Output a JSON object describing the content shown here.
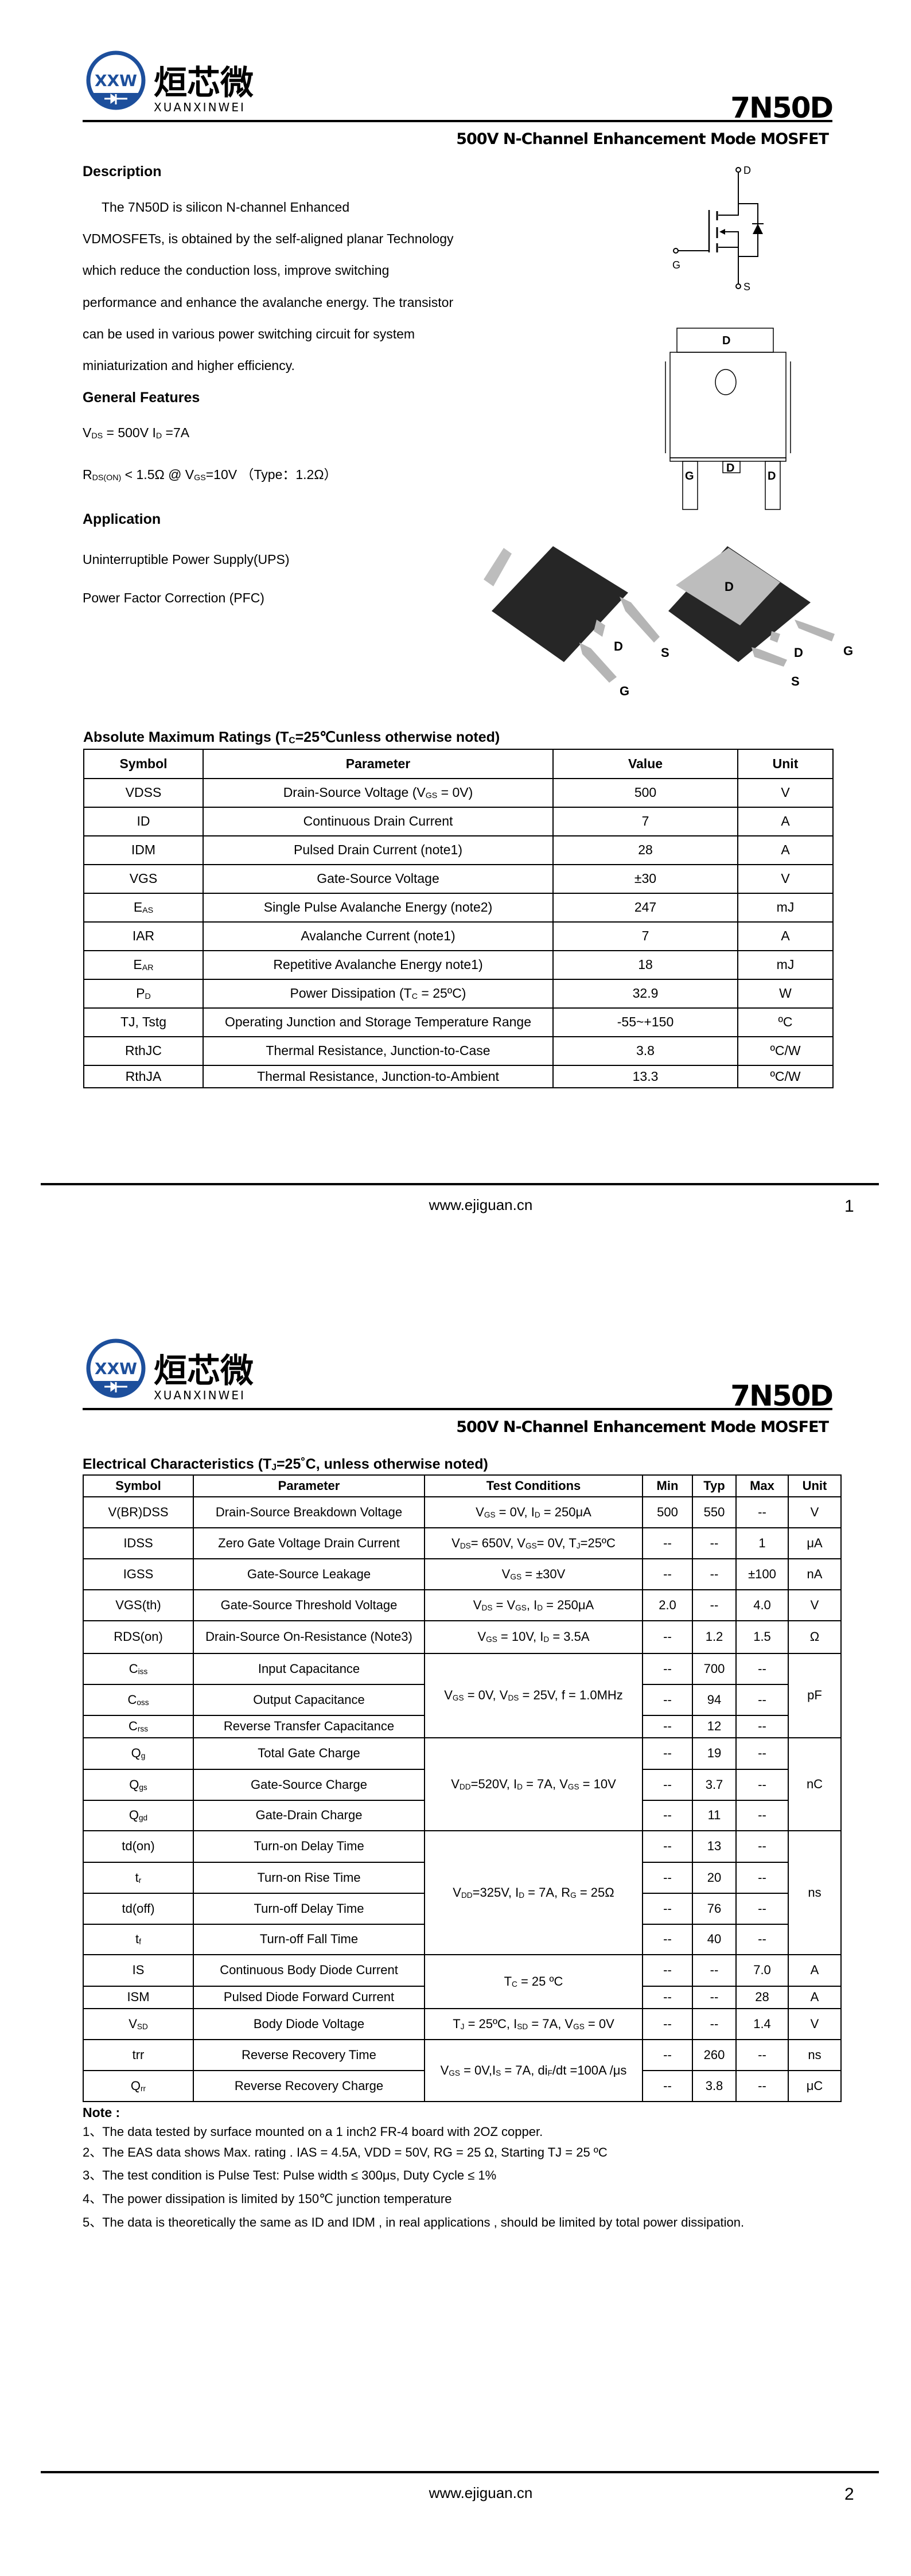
{
  "header": {
    "logo_mark": "XXW",
    "logo_text_cn": "烜芯微",
    "logo_text_en": "XUANXINWEI",
    "part_number": "7N50D",
    "subtitle": "500V N-Channel Enhancement Mode MOSFET"
  },
  "footer": {
    "website": "www.ejiguan.cn"
  },
  "page1": {
    "page_number": "1",
    "description": {
      "title": "Description",
      "lines": [
        "The 7N50D is silicon N-channel Enhanced",
        "VDMOSFETs, is obtained by the self-aligned planar Technology",
        "which reduce the conduction loss, improve switching",
        "performance and enhance the avalanche energy. The transistor",
        "can be used in various power switching circuit for system",
        "miniaturization and higher efficiency."
      ]
    },
    "features": {
      "title": "General Features",
      "items": [
        [
          "V",
          {
            "sub": "DS"
          },
          " = 500V  I",
          {
            "sub": "D"
          },
          " =7A"
        ],
        [
          "R",
          {
            "sub": "DS(ON)"
          },
          " < 1.5Ω @ V",
          {
            "sub": "GS"
          },
          "=10V （Type：1.2Ω）"
        ]
      ]
    },
    "application": {
      "title": "Application",
      "items": [
        "Uninterruptible Power Supply(UPS)",
        "Power Factor Correction (PFC)"
      ]
    },
    "schematic": {
      "drain": "D",
      "gate": "G",
      "source": "S"
    },
    "package_top": {
      "tab": "D",
      "pins": [
        "G",
        "D",
        "D"
      ]
    },
    "package_3d": {
      "left": {
        "d": "D",
        "s": "S",
        "g": "G"
      },
      "right": {
        "tab": "D",
        "d": "D",
        "g": "G",
        "s": "S"
      }
    },
    "abs_max": {
      "title": [
        "Absolute Maximum Ratings (T",
        {
          "sub": "C"
        },
        "=25℃unless otherwise noted)"
      ],
      "columns": [
        "Symbol",
        "Parameter",
        "Value",
        "Unit"
      ],
      "rows": [
        [
          [
            "VDSS"
          ],
          [
            "Drain-Source Voltage (V",
            {
              "sub": "GS"
            },
            " = 0V)"
          ],
          [
            "500"
          ],
          [
            "V"
          ]
        ],
        [
          [
            "ID"
          ],
          [
            "Continuous Drain Current"
          ],
          [
            "7"
          ],
          [
            "A"
          ]
        ],
        [
          [
            "IDM"
          ],
          [
            "Pulsed Drain Current    (note1)"
          ],
          [
            "28"
          ],
          [
            "A"
          ]
        ],
        [
          [
            "VGS"
          ],
          [
            "Gate-Source Voltage"
          ],
          [
            "±30"
          ],
          [
            "V"
          ]
        ],
        [
          [
            "E",
            {
              "sub": "AS"
            }
          ],
          [
            "Single Pulse Avalanche Energy (note2)"
          ],
          [
            "247"
          ],
          [
            "mJ"
          ]
        ],
        [
          [
            "IAR"
          ],
          [
            "Avalanche Current  (note1)"
          ],
          [
            "7"
          ],
          [
            "A"
          ]
        ],
        [
          [
            "E",
            {
              "sub": "AR"
            }
          ],
          [
            "Repetitive Avalanche Energy  note1)"
          ],
          [
            "18"
          ],
          [
            "mJ"
          ]
        ],
        [
          [
            "P",
            {
              "sub": "D"
            }
          ],
          [
            "Power Dissipation (T",
            {
              "sub": "C"
            },
            " = 25ºC)"
          ],
          [
            "32.9"
          ],
          [
            "W"
          ]
        ],
        [
          [
            "TJ, Tstg"
          ],
          [
            "Operating Junction and Storage Temperature Range"
          ],
          [
            "-55~+150"
          ],
          [
            "ºC"
          ]
        ],
        [
          [
            "RthJC"
          ],
          [
            "Thermal Resistance, Junction-to-Case"
          ],
          [
            "3.8"
          ],
          [
            "ºC/W"
          ]
        ],
        [
          [
            "RthJA"
          ],
          [
            "Thermal Resistance, Junction-to-Ambient"
          ],
          [
            "13.3"
          ],
          [
            "ºC/W"
          ]
        ]
      ]
    }
  },
  "page2": {
    "page_number": "2",
    "elec": {
      "title": [
        "Electrical Characteristics (T",
        {
          "sub": "J"
        },
        "=25˚C, unless otherwise noted)"
      ],
      "columns": [
        "Symbol",
        "Parameter",
        "Test Conditions",
        "Min",
        "Typ",
        "Max",
        "Unit"
      ],
      "rows": [
        {
          "sym": [
            "V(BR)DSS"
          ],
          "param": [
            "Drain-Source Breakdown Voltage"
          ],
          "cond": [
            "V",
            {
              "sub": "GS"
            },
            " = 0V, I",
            {
              "sub": "D"
            },
            " = 250μA"
          ],
          "min": "500",
          "typ": "550",
          "max": "--",
          "unit": "V"
        },
        {
          "sym": [
            "IDSS"
          ],
          "param": [
            "Zero Gate Voltage Drain Current"
          ],
          "cond": [
            "V",
            {
              "sub": "DS"
            },
            "= 650V, V",
            {
              "sub": "GS"
            },
            "= 0V, T",
            {
              "sub": "J"
            },
            "=25ºC"
          ],
          "min": "--",
          "typ": "--",
          "max": "1",
          "unit": "μA"
        },
        {
          "sym": [
            "IGSS"
          ],
          "param": [
            "Gate-Source Leakage"
          ],
          "cond": [
            "V",
            {
              "sub": "GS"
            },
            " = ±30V"
          ],
          "min": "--",
          "typ": "--",
          "max": "±100",
          "unit": "nA"
        },
        {
          "sym": [
            "VGS(th)"
          ],
          "param": [
            "Gate-Source Threshold Voltage"
          ],
          "cond": [
            "V",
            {
              "sub": "DS"
            },
            " = V",
            {
              "sub": "GS"
            },
            ", I",
            {
              "sub": "D"
            },
            " = 250μA"
          ],
          "min": "2.0",
          "typ": "--",
          "max": "4.0",
          "unit": "V"
        },
        {
          "sym": [
            "RDS(on)"
          ],
          "param": [
            "Drain-Source On-Resistance (Note3)"
          ],
          "cond": [
            "V",
            {
              "sub": "GS"
            },
            " = 10V, I",
            {
              "sub": "D"
            },
            " = 3.5A"
          ],
          "min": "--",
          "typ": "1.2",
          "max": "1.5",
          "unit": "Ω"
        },
        {
          "sym": [
            "C",
            {
              "sub": "iss"
            }
          ],
          "param": [
            "Input Capacitance"
          ],
          "cond": [
            "V",
            {
              "sub": "GS"
            },
            " = 0V, V",
            {
              "sub": "DS"
            },
            " = 25V, f = 1.0MHz"
          ],
          "cond_span": 3,
          "min": "--",
          "typ": "700",
          "max": "--",
          "unit": "pF",
          "unit_span": 3
        },
        {
          "sym": [
            "C",
            {
              "sub": "oss"
            }
          ],
          "param": [
            "Output Capacitance"
          ],
          "min": "--",
          "typ": "94",
          "max": "--"
        },
        {
          "sym": [
            "C",
            {
              "sub": "rss"
            }
          ],
          "param": [
            "Reverse Transfer Capacitance"
          ],
          "min": "--",
          "typ": "12",
          "max": "--"
        },
        {
          "sym": [
            "Q",
            {
              "sub": "g"
            }
          ],
          "param": [
            "Total Gate Charge"
          ],
          "cond": [
            "V",
            {
              "sub": "DD"
            },
            "=520V, I",
            {
              "sub": "D"
            },
            " = 7A, V",
            {
              "sub": "GS"
            },
            " = 10V"
          ],
          "cond_span": 3,
          "min": "--",
          "typ": "19",
          "max": "--",
          "unit": "nC",
          "unit_span": 3
        },
        {
          "sym": [
            "Q",
            {
              "sub": "gs"
            }
          ],
          "param": [
            "Gate-Source Charge"
          ],
          "min": "--",
          "typ": "3.7",
          "max": "--"
        },
        {
          "sym": [
            "Q",
            {
              "sub": "gd"
            }
          ],
          "param": [
            "Gate-Drain Charge"
          ],
          "min": "--",
          "typ": "11",
          "max": "--"
        },
        {
          "sym": [
            "td(on)"
          ],
          "param": [
            "Turn-on Delay Time"
          ],
          "cond": [
            "V",
            {
              "sub": "DD"
            },
            "=325V, I",
            {
              "sub": "D"
            },
            " = 7A, R",
            {
              "sub": "G"
            },
            " = 25Ω"
          ],
          "cond_span": 4,
          "min": "--",
          "typ": "13",
          "max": "--",
          "unit": "ns",
          "unit_span": 4
        },
        {
          "sym": [
            "t",
            {
              "sub": "r"
            }
          ],
          "param": [
            "Turn-on Rise Time"
          ],
          "min": "--",
          "typ": "20",
          "max": "--"
        },
        {
          "sym": [
            "td(off)"
          ],
          "param": [
            "Turn-off Delay Time"
          ],
          "min": "--",
          "typ": "76",
          "max": "--"
        },
        {
          "sym": [
            "t",
            {
              "sub": "f"
            }
          ],
          "param": [
            "Turn-off Fall Time"
          ],
          "min": "--",
          "typ": "40",
          "max": "--"
        },
        {
          "sym": [
            "IS"
          ],
          "param": [
            "Continuous Body Diode Current"
          ],
          "cond": [
            "T",
            {
              "sub": "C"
            },
            " = 25 ºC"
          ],
          "cond_span": 2,
          "min": "--",
          "typ": "--",
          "max": "7.0",
          "unit": "A"
        },
        {
          "sym": [
            "ISM"
          ],
          "param": [
            "Pulsed Diode Forward Current"
          ],
          "min": "--",
          "typ": "--",
          "max": "28",
          "unit": "A"
        },
        {
          "sym": [
            "V",
            {
              "sub": "SD"
            }
          ],
          "param": [
            "Body Diode Voltage"
          ],
          "cond": [
            "T",
            {
              "sub": "J"
            },
            " = 25ºC, I",
            {
              "sub": "SD"
            },
            " = 7A, V",
            {
              "sub": "GS"
            },
            " = 0V"
          ],
          "min": "--",
          "typ": "--",
          "max": "1.4",
          "unit": "V"
        },
        {
          "sym": [
            "trr"
          ],
          "param": [
            "Reverse Recovery Time"
          ],
          "cond": [
            "V",
            {
              "sub": "GS"
            },
            " = 0V,I",
            {
              "sub": "S"
            },
            " = 7A, di",
            {
              "sub": "F"
            },
            "/dt =100A /μs"
          ],
          "cond_span": 2,
          "min": "--",
          "typ": "260",
          "max": "--",
          "unit": "ns"
        },
        {
          "sym": [
            "Q",
            {
              "sub": "rr"
            }
          ],
          "param": [
            "Reverse Recovery Charge"
          ],
          "min": "--",
          "typ": "3.8",
          "max": "--",
          "unit": "μC"
        }
      ]
    },
    "notes": {
      "title": "Note :",
      "items": [
        "1、The data tested by surface mounted on a 1 inch2 FR-4 board with 2OZ copper.",
        "2、The EAS data shows Max. rating . IAS = 4.5A, VDD = 50V, RG = 25 Ω, Starting TJ = 25 ºC",
        "3、The test condition is Pulse Test: Pulse width ≤ 300μs, Duty Cycle ≤ 1%",
        "4、The power dissipation is limited by 150℃ junction temperature",
        "5、The data is theoretically the same as ID and IDM , in real applications , should be limited by total power dissipation."
      ]
    }
  },
  "colors": {
    "logo_blue": "#1d4f9c",
    "logo_green": "#3aa935",
    "text": "#000000"
  }
}
